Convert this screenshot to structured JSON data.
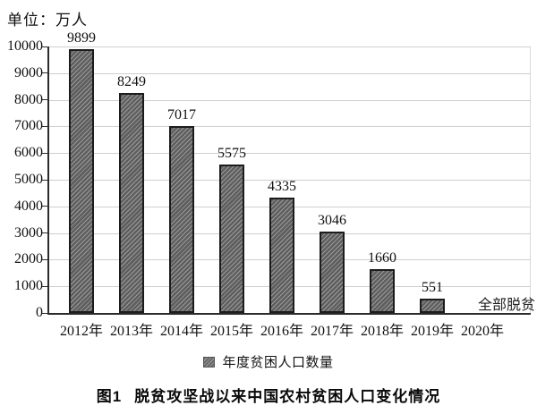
{
  "chart_data": {
    "type": "bar",
    "unit_label": "单位：万人",
    "figure_label": "图1",
    "title": "脱贫攻坚战以来中国农村贫困人口变化情况",
    "categories": [
      "2012年",
      "2013年",
      "2014年",
      "2015年",
      "2016年",
      "2017年",
      "2018年",
      "2019年",
      "2020年"
    ],
    "values": [
      9899,
      8249,
      7017,
      5575,
      4335,
      3046,
      1660,
      551,
      0
    ],
    "bar_value_labels": [
      "9899",
      "8249",
      "7017",
      "5575",
      "4335",
      "3046",
      "1660",
      "551",
      ""
    ],
    "annotation": {
      "text": "全部脱贫",
      "category": "2020年"
    },
    "legend": [
      "年度贫困人口数量"
    ],
    "legend_position": "bottom",
    "xlabel": "",
    "ylabel": "",
    "ylim": [
      0,
      10000
    ],
    "ytick_step": 1000,
    "yticks": [
      "0",
      "1000",
      "2000",
      "3000",
      "4000",
      "5000",
      "6000",
      "7000",
      "8000",
      "9000",
      "10000"
    ],
    "grid": "horizontal",
    "colors": {
      "bar_fill": "#5e5e5e",
      "bar_hatch": "#9b9b9b",
      "bar_border": "#1c1c1c",
      "gridline": "#cfcfcf",
      "axis": "#2b2b2b",
      "text": "#111111"
    }
  }
}
